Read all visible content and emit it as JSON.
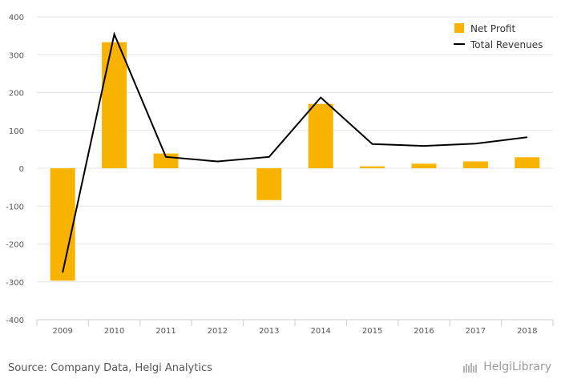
{
  "chart_data": {
    "type": "bar",
    "categories": [
      "2009",
      "2010",
      "2011",
      "2012",
      "2013",
      "2014",
      "2015",
      "2016",
      "2017",
      "2018"
    ],
    "series": [
      {
        "name": "Net Profit",
        "kind": "bar",
        "color": "#f8b300",
        "values": [
          -297,
          333,
          39,
          0,
          -84,
          170,
          5,
          12,
          18,
          29
        ]
      },
      {
        "name": "Total Revenues",
        "kind": "line",
        "color": "#000000",
        "values": [
          -275,
          354,
          30,
          18,
          30,
          187,
          64,
          59,
          65,
          82
        ]
      }
    ],
    "ylim": [
      -400,
      400
    ],
    "yticks": [
      400,
      300,
      200,
      100,
      0,
      -100,
      -200,
      -300,
      -400
    ],
    "grid": true,
    "legend_position": "top-right"
  },
  "footer": {
    "source": "Source: Company Data, Helgi Analytics",
    "brand": "HelgiLibrary"
  }
}
